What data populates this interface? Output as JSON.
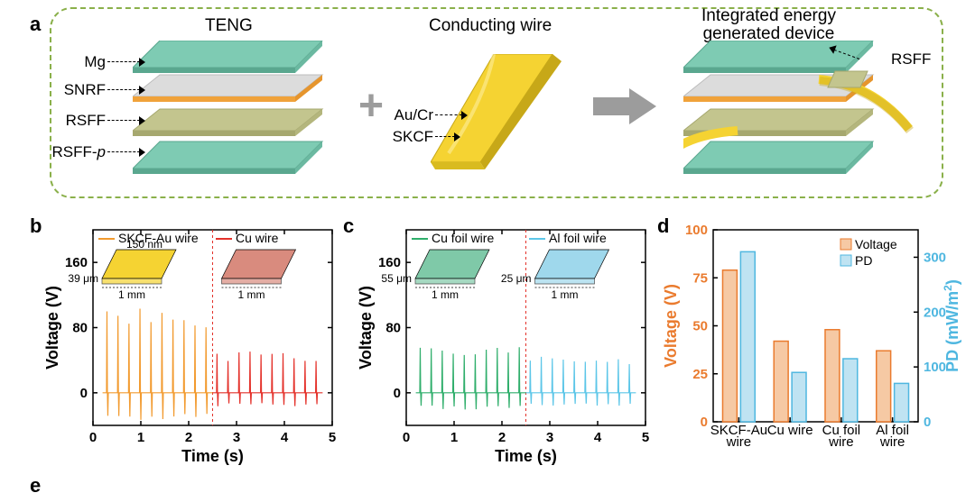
{
  "panelA": {
    "label": "a",
    "teng_title": "TENG",
    "wire_title": "Conducting wire",
    "device_title": "Integrated energy\ngenerated device",
    "layer_labels": [
      "Mg",
      "SNRF",
      "RSFF",
      "RSFF-p"
    ],
    "wire_labels": [
      "Au/Cr",
      "SKCF"
    ],
    "device_side_label": "RSFF",
    "border_color": "#8ab04a",
    "colors": {
      "mg": "#7ecbb3",
      "snrf_top": "#dcdcdc",
      "snrf_side": "#f0a23a",
      "rsff": "#c3c58e",
      "rsffp": "#7ecbb3",
      "wire": "#f5d332",
      "wire_edge": "#c7a818"
    }
  },
  "panelB": {
    "label": "b",
    "xlabel": "Time (s)",
    "ylabel": "Voltage (V)",
    "xlim": [
      0,
      5
    ],
    "ylim": [
      -40,
      200
    ],
    "xticks": [
      0,
      1,
      2,
      3,
      4,
      5
    ],
    "yticks": [
      0,
      80,
      160
    ],
    "split_x": 2.5,
    "series": [
      {
        "name": "SKCF-Au wire",
        "color": "#f29a2e",
        "range": [
          0.2,
          2.5
        ],
        "peak_pos": 90,
        "peak_neg": -30,
        "n": 10
      },
      {
        "name": "Cu wire",
        "color": "#e4312a",
        "range": [
          2.5,
          4.8
        ],
        "peak_pos": 45,
        "peak_neg": -15,
        "n": 10
      }
    ],
    "insets": [
      {
        "color": "#f5d332",
        "w_label": "1 mm",
        "h_label": "39 μm",
        "top_label": "150 nm"
      },
      {
        "color": "#d98b7e",
        "w_label": "1 mm"
      }
    ]
  },
  "panelC": {
    "label": "c",
    "xlabel": "Time (s)",
    "ylabel": "Voltage (V)",
    "xlim": [
      0,
      5
    ],
    "ylim": [
      -40,
      200
    ],
    "xticks": [
      0,
      1,
      2,
      3,
      4,
      5
    ],
    "yticks": [
      0,
      80,
      160
    ],
    "split_x": 2.5,
    "series": [
      {
        "name": "Cu foil wire",
        "color": "#2fae6b",
        "range": [
          0.2,
          2.5
        ],
        "peak_pos": 50,
        "peak_neg": -18,
        "n": 10
      },
      {
        "name": "Al foil wire",
        "color": "#5cc6e8",
        "range": [
          2.5,
          4.8
        ],
        "peak_pos": 40,
        "peak_neg": -14,
        "n": 10
      }
    ],
    "insets": [
      {
        "color": "#7fc9a8",
        "w_label": "1 mm",
        "h_label": "55 μm"
      },
      {
        "color": "#9fd8ec",
        "w_label": "1 mm",
        "h_label": "25 μm"
      }
    ]
  },
  "panelD": {
    "label": "d",
    "ylabel_left": "Voltage (V)",
    "ylabel_right": "PD (mW/m",
    "ylabel_right_sup": "2",
    "ylabel_right_close": ")",
    "ylim_left": [
      0,
      100
    ],
    "ytick_left": 25,
    "ylim_right": [
      0,
      350
    ],
    "yticks_right": [
      0,
      100,
      200,
      300
    ],
    "left_color": "#ea7b2e",
    "right_color": "#4fb7e0",
    "categories": [
      "SKCF-Au\nwire",
      "Cu wire",
      "Cu foil\nwire",
      "Al foil\nwire"
    ],
    "voltage": [
      79,
      42,
      48,
      37
    ],
    "pd": [
      310,
      90,
      115,
      70
    ],
    "bar_voltage_fill": "#f6c9a4",
    "bar_voltage_stroke": "#ea7b2e",
    "bar_pd_fill": "#bfe3f2",
    "bar_pd_stroke": "#4fb7e0",
    "legend": {
      "voltage": "Voltage",
      "pd": "PD"
    }
  },
  "panelE": {
    "label": "e"
  }
}
